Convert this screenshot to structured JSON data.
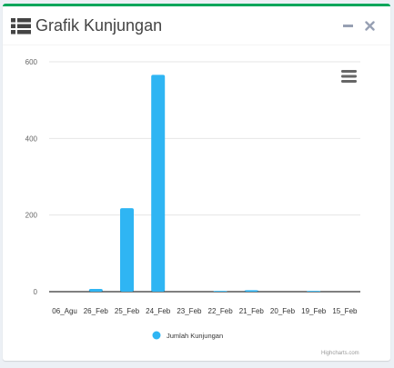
{
  "panel": {
    "title": "Grafik Kunjungan",
    "title_icon": "list-icon",
    "minimize_icon": "minus-icon",
    "close_icon": "times-icon"
  },
  "colors": {
    "accent_border": "#00a65a",
    "bar": "#2fb5f3",
    "title_text": "#444444",
    "tool_icon": "#97a0b3"
  },
  "chart_menu_icon": "hamburger-icon",
  "credit": "Highcharts.com",
  "chart_data": {
    "type": "bar",
    "title": "",
    "xlabel": "",
    "ylabel": "",
    "categories": [
      "06_Agu",
      "26_Feb",
      "25_Feb",
      "24_Feb",
      "23_Feb",
      "22_Feb",
      "21_Feb",
      "20_Feb",
      "19_Feb",
      "15_Feb"
    ],
    "series": [
      {
        "name": "Jumlah Kunjungan",
        "values": [
          0,
          7,
          218,
          566,
          0,
          2,
          4,
          0,
          2,
          0
        ]
      }
    ],
    "ylim": [
      0,
      600
    ],
    "yticks": [
      0,
      200,
      400,
      600
    ],
    "grid": true,
    "legend": "bottom-center"
  }
}
